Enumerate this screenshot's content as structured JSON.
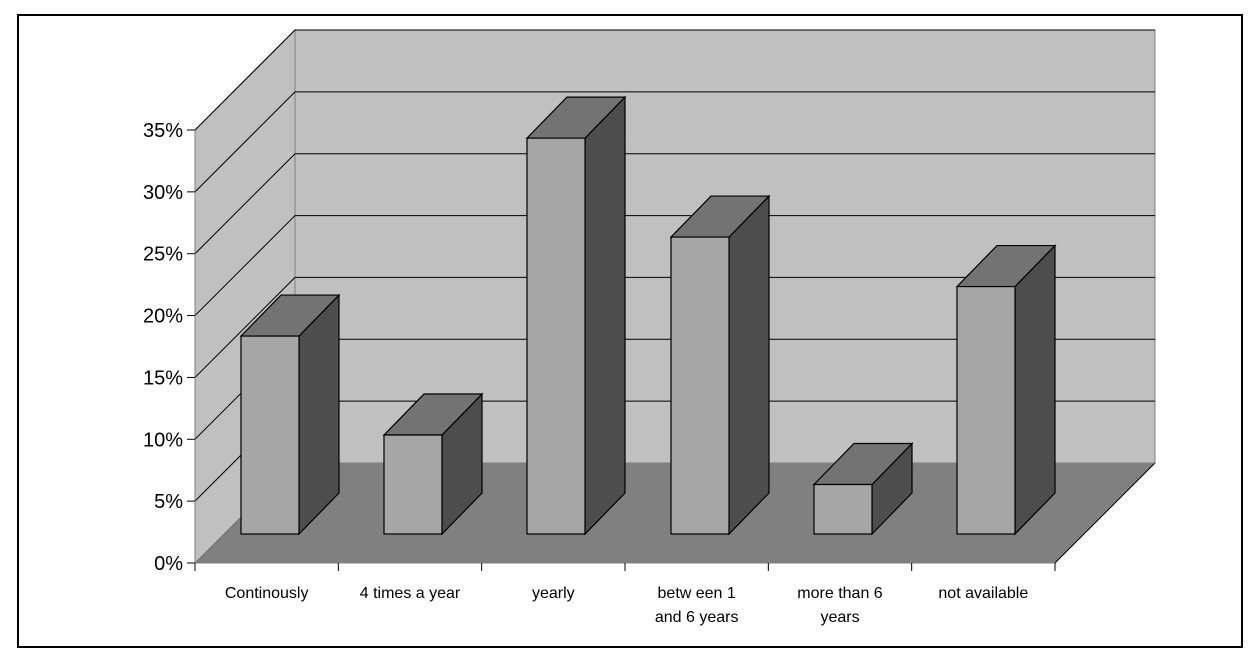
{
  "chart_data": {
    "type": "bar",
    "title": "",
    "xlabel": "",
    "ylabel": "",
    "categories": [
      [
        "Continously"
      ],
      [
        "4 times a year"
      ],
      [
        "yearly"
      ],
      [
        "betw een 1",
        "and 6 years"
      ],
      [
        "more than 6",
        "years"
      ],
      [
        "not available"
      ]
    ],
    "values": [
      16,
      8,
      32,
      24,
      4,
      20
    ],
    "ylim": [
      0,
      35
    ],
    "yticks": [
      0,
      5,
      10,
      15,
      20,
      25,
      30,
      35
    ],
    "ytick_labels": [
      "0%",
      "5%",
      "10%",
      "15%",
      "20%",
      "25%",
      "30%",
      "35%"
    ],
    "grid": true,
    "legend": "none",
    "colors": {
      "back_wall": "#c0c0c0",
      "side_wall": "#c0c0c0",
      "floor": "#808080",
      "bar_front": "#a6a6a6",
      "bar_top": "#737373",
      "bar_side": "#4d4d4d",
      "grid": "#000000"
    }
  }
}
